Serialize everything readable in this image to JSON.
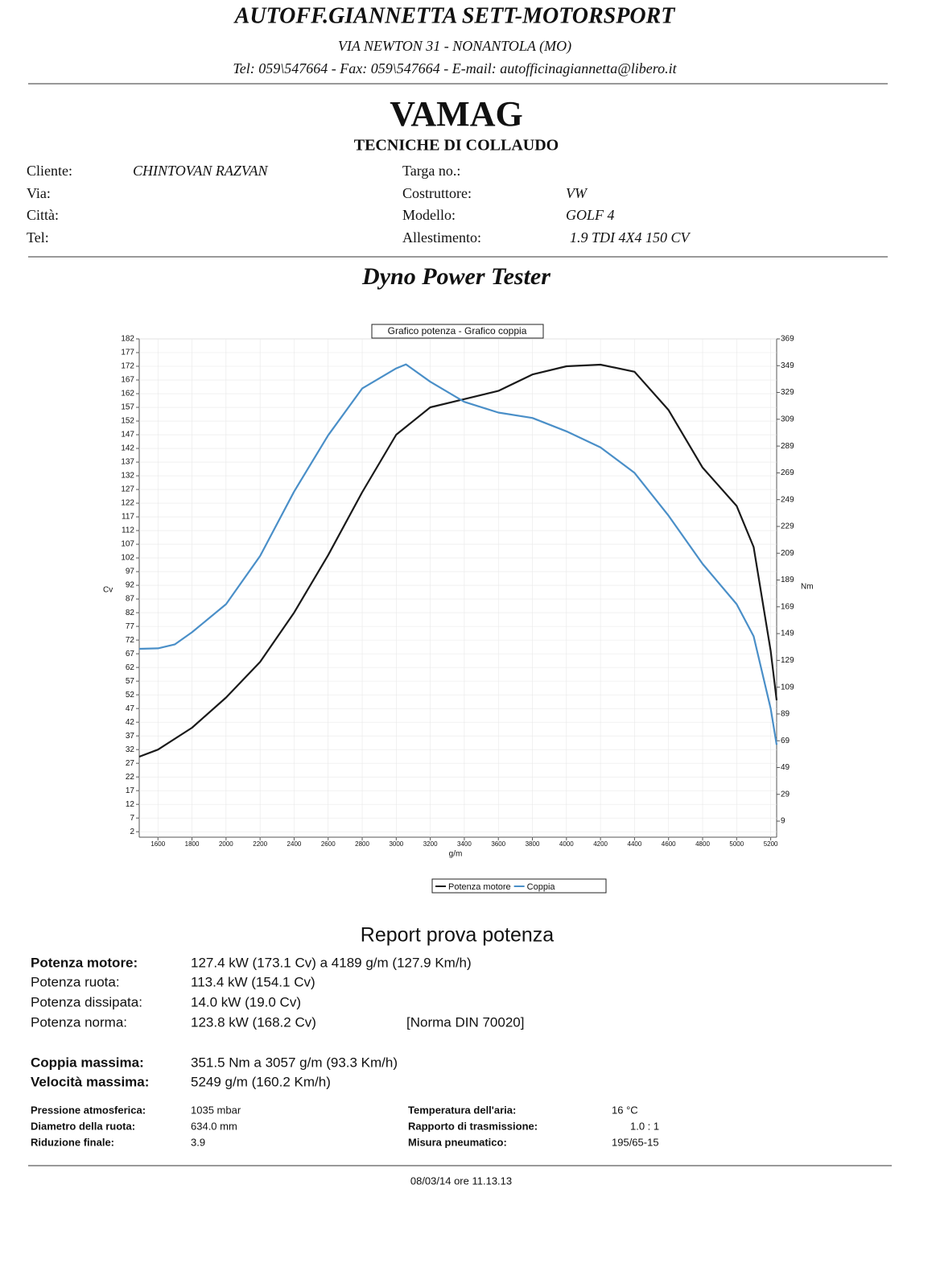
{
  "header": {
    "company": "AUTOFF.GIANNETTA SETT-MOTORSPORT",
    "address": "VIA NEWTON 31 - NONANTOLA (MO)",
    "contacts": "Tel: 059\\547664 - Fax: 059\\547664 - E-mail: autofficinagiannetta@libero.it"
  },
  "brand": {
    "title": "VAMAG",
    "subtitle": "TECNICHE DI COLLAUDO"
  },
  "customer": [
    {
      "label": "Cliente:",
      "value": "CHINTOVAN RAZVAN"
    },
    {
      "label": "Via:"
    },
    {
      "label": "Città:"
    },
    {
      "label": "Tel:"
    }
  ],
  "vehicle": [
    {
      "label": "Targa no.:"
    },
    {
      "label": "Costruttore:",
      "value": "VW"
    },
    {
      "label": "Modello:",
      "value": "GOLF 4"
    },
    {
      "label": "Allestimento:",
      "value": "1.9 TDI 4X4 150 CV"
    }
  ],
  "section_title": "Dyno Power Tester",
  "chart_data": {
    "type": "line",
    "title": "Grafico potenza - Grafico coppia",
    "x_label": "g/m",
    "y_label": "Cv",
    "y2_label": "Nm",
    "xlim": [
      1490,
      5235
    ],
    "xticks": [
      1600,
      1800,
      2000,
      2200,
      2400,
      2600,
      2800,
      3000,
      3200,
      3400,
      3600,
      3800,
      4000,
      4200,
      4400,
      4600,
      4800,
      5000,
      5200
    ],
    "ylim": [
      0,
      182
    ],
    "yticks": [
      2,
      7,
      12,
      17,
      22,
      27,
      32,
      37,
      42,
      47,
      52,
      57,
      62,
      67,
      72,
      77,
      82,
      87,
      92,
      97,
      102,
      107,
      112,
      117,
      122,
      127,
      132,
      137,
      142,
      147,
      152,
      157,
      162,
      167,
      172,
      177,
      182
    ],
    "y2lim": [
      -3,
      369
    ],
    "y2ticks": [
      9,
      29,
      49,
      69,
      89,
      109,
      129,
      149,
      169,
      189,
      209,
      229,
      249,
      269,
      289,
      309,
      329,
      349,
      369
    ],
    "series": [
      {
        "name": "Potenza motore",
        "color": "#1a1a1a",
        "x": [
          1490,
          1600,
          1800,
          2000,
          2200,
          2400,
          2600,
          2800,
          3000,
          3200,
          3400,
          3600,
          3800,
          4000,
          4200,
          4400,
          4600,
          4800,
          5000,
          5100,
          5200,
          5235
        ],
        "values": [
          29.4,
          32,
          40,
          51,
          64,
          82,
          103,
          126,
          147,
          157,
          160,
          163,
          169,
          172,
          172.6,
          170,
          156,
          135,
          121,
          106,
          68,
          50
        ]
      },
      {
        "name": "Coppia",
        "color": "#4a8fc8",
        "axis": "y2",
        "x": [
          1490,
          1600,
          1700,
          1800,
          2000,
          2200,
          2400,
          2600,
          2800,
          3000,
          3057,
          3200,
          3400,
          3600,
          3800,
          4000,
          4200,
          4400,
          4600,
          4800,
          5000,
          5100,
          5200,
          5235
        ],
        "values": [
          137.6,
          138,
          141,
          150,
          171,
          207,
          255,
          297,
          332,
          347,
          350,
          337,
          322,
          314,
          310,
          300,
          288,
          269,
          237,
          201,
          171,
          147,
          93,
          66
        ]
      }
    ]
  },
  "report": {
    "title": "Report prova potenza",
    "power": [
      {
        "label": "Potenza motore:",
        "value": "127.4 kW (173.1 Cv) a 4189 g/m (127.9 Km/h)"
      },
      {
        "label": "Potenza ruota:",
        "value": "113.4 kW (154.1 Cv)"
      },
      {
        "label": "Potenza dissipata:",
        "value": "14.0 kW (19.0 Cv)"
      },
      {
        "label": "Potenza norma:",
        "value": "123.8 kW (168.2 Cv)",
        "note": "[Norma DIN 70020]"
      }
    ],
    "max": [
      {
        "label": "Coppia massima:",
        "value": "351.5 Nm a 3057 g/m (93.3 Km/h)"
      },
      {
        "label": "Velocità massima:",
        "value": "5249 g/m (160.2 Km/h)"
      }
    ],
    "conditions_left": [
      {
        "label": "Pressione atmosferica:",
        "value": "1035 mbar"
      },
      {
        "label": "Diametro della ruota:",
        "value": "634.0 mm"
      },
      {
        "label": "Riduzione finale:",
        "value": "3.9"
      }
    ],
    "conditions_right": [
      {
        "label": "Temperatura dell'aria:",
        "value": "16 °C"
      },
      {
        "label": "Rapporto di trasmissione:",
        "value": "1.0 : 1"
      },
      {
        "label": "Misura pneumatico:",
        "value": "195/65-15"
      }
    ]
  },
  "footer": "08/03/14 ore 11.13.13"
}
